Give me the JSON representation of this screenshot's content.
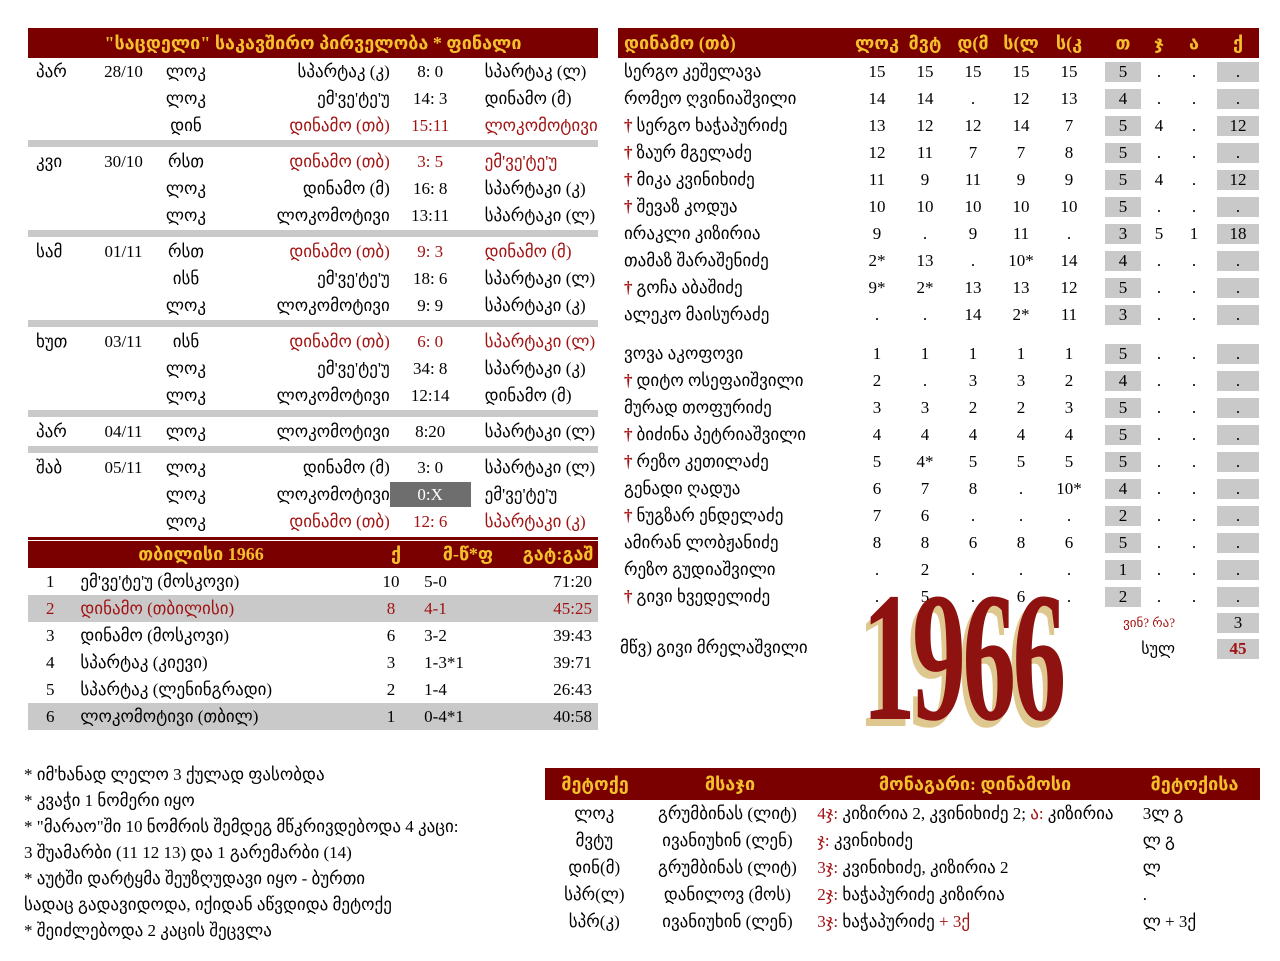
{
  "colors": {
    "maroon": "#7a0000",
    "gold": "#f3c02c",
    "red_text": "#a11212",
    "gray": "#c9c9c9",
    "box_gray": "#6e6e6e",
    "year_fill": "#8e1310",
    "year_shadow": "#dfc88f"
  },
  "fixtures": {
    "title": "\"საცდელი\" საკავშირო პირველობა * ფინალი",
    "groups": [
      {
        "day": "პარ",
        "date": "28/10",
        "rows": [
          {
            "venue": "ლოკ",
            "home": "სპარტაკ (კ)",
            "score": "8: 0",
            "away": "სპარტაკ (ლ)",
            "red": false,
            "box": false
          },
          {
            "venue": "ლოკ",
            "home": "ემ'ვე'ტე'უ",
            "score": "14: 3",
            "away": "დინამო (მ)",
            "red": false,
            "box": false
          },
          {
            "venue": "დინ",
            "home": "დინამო (თბ)",
            "score": "15:11",
            "away": "ლოკომოტივი",
            "red": true,
            "box": false
          }
        ]
      },
      {
        "day": "კვი",
        "date": "30/10",
        "rows": [
          {
            "venue": "რსთ",
            "home": "დინამო (თბ)",
            "score": "3: 5",
            "away": "ემ'ვე'ტე'უ",
            "red": true,
            "box": false
          },
          {
            "venue": "ლოკ",
            "home": "დინამო (მ)",
            "score": "16: 8",
            "away": "სპარტაკი (კ)",
            "red": false,
            "box": false
          },
          {
            "venue": "ლოკ",
            "home": "ლოკომოტივი",
            "score": "13:11",
            "away": "სპარტაკი (ლ)",
            "red": false,
            "box": false
          }
        ]
      },
      {
        "day": "სამ",
        "date": "01/11",
        "rows": [
          {
            "venue": "რსთ",
            "home": "დინამო (თბ)",
            "score": "9: 3",
            "away": "დინამო (მ)",
            "red": true,
            "box": false
          },
          {
            "venue": "ისნ",
            "home": "ემ'ვე'ტე'უ",
            "score": "18: 6",
            "away": "სპარტაკი (ლ)",
            "red": false,
            "box": false
          },
          {
            "venue": "ლოკ",
            "home": "ლოკომოტივი",
            "score": "9: 9",
            "away": "სპარტაკი (კ)",
            "red": false,
            "box": false
          }
        ]
      },
      {
        "day": "ხუთ",
        "date": "03/11",
        "rows": [
          {
            "venue": "ისნ",
            "home": "დინამო (თბ)",
            "score": "6: 0",
            "away": "სპარტაკი (ლ)",
            "red": true,
            "box": false
          },
          {
            "venue": "ლოკ",
            "home": "ემ'ვე'ტე'უ",
            "score": "34: 8",
            "away": "სპარტაკი (კ)",
            "red": false,
            "box": false
          },
          {
            "venue": "ლოკ",
            "home": "ლოკომოტივი",
            "score": "12:14",
            "away": "დინამო (მ)",
            "red": false,
            "box": false
          }
        ]
      },
      {
        "day": "პარ",
        "date": "04/11",
        "rows": [
          {
            "venue": "ლოკ",
            "home": "ლოკომოტივი",
            "score": "8:20",
            "away": "სპარტაკი (ლ)",
            "red": false,
            "box": false
          }
        ]
      },
      {
        "day": "შაბ",
        "date": "05/11",
        "rows": [
          {
            "venue": "ლოკ",
            "home": "დინამო (მ)",
            "score": "3: 0",
            "away": "სპარტაკი (ლ)",
            "red": false,
            "box": false
          },
          {
            "venue": "ლოკ",
            "home": "ლოკომოტივი",
            "score": "0:X",
            "away": "ემ'ვე'ტე'უ",
            "red": false,
            "box": true
          },
          {
            "venue": "ლოკ",
            "home": "დინამო (თბ)",
            "score": "12: 6",
            "away": "სპარტაკი (კ)",
            "red": true,
            "box": false
          }
        ]
      }
    ]
  },
  "standings": {
    "title": "თბილისი 1966",
    "col_q": "ქ",
    "col_record": "მ-წ*ფ",
    "col_score": "გატ:გაშ",
    "rows": [
      {
        "rank": "1",
        "team": "ემ'ვე'ტე'უ (მოსკოვი)",
        "q": "10",
        "record": "5-0",
        "score": "71:20",
        "style": ""
      },
      {
        "rank": "2",
        "team": "დინამო (თბილისი)",
        "q": "8",
        "record": "4-1",
        "score": "45:25",
        "style": "redgray"
      },
      {
        "rank": "3",
        "team": "დინამო (მოსკოვი)",
        "q": "6",
        "record": "3-2",
        "score": "39:43",
        "style": ""
      },
      {
        "rank": "4",
        "team": "სპარტაკ (კიევი)",
        "q": "3",
        "record": "1-3*1",
        "score": "39:71",
        "style": ""
      },
      {
        "rank": "5",
        "team": "სპარტაკ (ლენინგრადი)",
        "q": "2",
        "record": "1-4",
        "score": "26:43",
        "style": ""
      },
      {
        "rank": "6",
        "team": "ლოკომოტივი (თბილ)",
        "q": "1",
        "record": "0-4*1",
        "score": "40:58",
        "style": "gray"
      }
    ]
  },
  "footnotes": [
    "* იმ'ხანად ლელო 3 ქულად ფასობდა",
    "* კვაჭი 1 ნომერი იყო",
    "* \"მარაო\"ში 10 ნომრის შემდეგ მწკრივდებოდა 4 კაცი:",
    "3 შუამარბი (11 12 13) და 1 გარემარბი (14)",
    "* აუტში დარტყმა შეუზღუდავი იყო - ბურთი",
    "სადაც გადავიდოდა, იქიდან აწვდიდა მეტოქე",
    "* შეიძლებოდა 2 კაცის შეცვლა"
  ],
  "squad": {
    "title": "დინამო (თბ)",
    "match_cols": [
      "ლოკ",
      "მვტ",
      "დ(მ",
      "ს(ლ",
      "ს(კ"
    ],
    "stat_cols": [
      "თ",
      "ჯ",
      "ა",
      "ქ"
    ],
    "players": [
      {
        "cross": false,
        "name": "სერგო კეშელავა",
        "m": [
          "15",
          "15",
          "15",
          "15",
          "15"
        ],
        "t": "5",
        "j": ".",
        "a": ".",
        "q": ".",
        "gap_after": false
      },
      {
        "cross": false,
        "name": "რომეო ღვინიაშვილი",
        "m": [
          "14",
          "14",
          ".",
          "12",
          "13"
        ],
        "t": "4",
        "j": ".",
        "a": ".",
        "q": ".",
        "gap_after": false
      },
      {
        "cross": true,
        "name": "სერგო ხაჭაპურიძე",
        "m": [
          "13",
          "12",
          "12",
          "14",
          "7"
        ],
        "t": "5",
        "j": "4",
        "a": ".",
        "q": "12",
        "gap_after": false
      },
      {
        "cross": true,
        "name": "ზაურ მგელაძე",
        "m": [
          "12",
          "11",
          "7",
          "7",
          "8"
        ],
        "t": "5",
        "j": ".",
        "a": ".",
        "q": ".",
        "gap_after": false
      },
      {
        "cross": true,
        "name": "მიკა კვინიხიძე",
        "m": [
          "11",
          "9",
          "11",
          "9",
          "9"
        ],
        "t": "5",
        "j": "4",
        "a": ".",
        "q": "12",
        "gap_after": false
      },
      {
        "cross": true,
        "name": "შევაზ კოდუა",
        "m": [
          "10",
          "10",
          "10",
          "10",
          "10"
        ],
        "t": "5",
        "j": ".",
        "a": ".",
        "q": ".",
        "gap_after": false
      },
      {
        "cross": false,
        "name": "ირაკლი კიზირია",
        "m": [
          "9",
          ".",
          "9",
          "11",
          "."
        ],
        "t": "3",
        "j": "5",
        "a": "1",
        "q": "18",
        "gap_after": false
      },
      {
        "cross": false,
        "name": "თამაზ შარაშენიძე",
        "m": [
          "2*",
          "13",
          ".",
          "10*",
          "14"
        ],
        "t": "4",
        "j": ".",
        "a": ".",
        "q": ".",
        "gap_after": false
      },
      {
        "cross": true,
        "name": "გოჩა აბაშიძე",
        "m": [
          "9*",
          "2*",
          "13",
          "13",
          "12"
        ],
        "t": "5",
        "j": ".",
        "a": ".",
        "q": ".",
        "gap_after": false
      },
      {
        "cross": false,
        "name": "ალეკო მაისურაძე",
        "m": [
          ".",
          ".",
          "14",
          "2*",
          "11"
        ],
        "t": "3",
        "j": ".",
        "a": ".",
        "q": ".",
        "gap_after": true
      },
      {
        "cross": false,
        "name": "ვოვა აკოფოვი",
        "m": [
          "1",
          "1",
          "1",
          "1",
          "1"
        ],
        "t": "5",
        "j": ".",
        "a": ".",
        "q": ".",
        "gap_after": false
      },
      {
        "cross": true,
        "name": "დიტო ოსეფაიშვილი",
        "m": [
          "2",
          ".",
          "3",
          "3",
          "2"
        ],
        "t": "4",
        "j": ".",
        "a": ".",
        "q": ".",
        "gap_after": false
      },
      {
        "cross": false,
        "name": "მურად თოფურიძე",
        "m": [
          "3",
          "3",
          "2",
          "2",
          "3"
        ],
        "t": "5",
        "j": ".",
        "a": ".",
        "q": ".",
        "gap_after": false
      },
      {
        "cross": true,
        "name": "ბიძინა პეტრიაშვილი",
        "m": [
          "4",
          "4",
          "4",
          "4",
          "4"
        ],
        "t": "5",
        "j": ".",
        "a": ".",
        "q": ".",
        "gap_after": false
      },
      {
        "cross": true,
        "name": "რეზო კეთილაძე",
        "m": [
          "5",
          "4*",
          "5",
          "5",
          "5"
        ],
        "t": "5",
        "j": ".",
        "a": ".",
        "q": ".",
        "gap_after": false
      },
      {
        "cross": false,
        "name": "გენადი ღადუა",
        "m": [
          "6",
          "7",
          "8",
          ".",
          "10*"
        ],
        "t": "4",
        "j": ".",
        "a": ".",
        "q": ".",
        "gap_after": false
      },
      {
        "cross": true,
        "name": "ნუგზარ ენდელაძე",
        "m": [
          "7",
          "6",
          ".",
          ".",
          "."
        ],
        "t": "2",
        "j": ".",
        "a": ".",
        "q": ".",
        "gap_after": false
      },
      {
        "cross": false,
        "name": "ამირან ლობჟანიძე",
        "m": [
          "8",
          "8",
          "6",
          "8",
          "6"
        ],
        "t": "5",
        "j": ".",
        "a": ".",
        "q": ".",
        "gap_after": false
      },
      {
        "cross": false,
        "name": "რეზო გუდიაშვილი",
        "m": [
          ".",
          "2",
          ".",
          ".",
          "."
        ],
        "t": "1",
        "j": ".",
        "a": ".",
        "q": ".",
        "gap_after": false
      },
      {
        "cross": true,
        "name": "გივი ხვედელიძე",
        "m": [
          ".",
          "5",
          ".",
          "6",
          "."
        ],
        "t": "2",
        "j": ".",
        "a": ".",
        "q": ".",
        "gap_after": false
      }
    ],
    "who_what_label": "ვინ? რა?",
    "who_what_value": "3",
    "total_label": "სულ",
    "total_value": "45",
    "coach": "მწვ) გივი მრელაშვილი"
  },
  "year": "1966",
  "legend": {
    "headers": [
      "მეტოქე",
      "მსაჯი",
      "მონაგარი: დინამოსი",
      "მეტოქისა"
    ],
    "rows": [
      {
        "opp": "ლოკ",
        "ref": "გრუმბინას (ლიტ)",
        "segs": [
          {
            "t": "4ჯ:",
            "red": true
          },
          {
            "t": " კიზირია 2, კვინიხიძე 2; ",
            "red": false
          },
          {
            "t": "ა:",
            "red": true
          },
          {
            "t": " კიზირია",
            "red": false
          }
        ],
        "opp_score": "3ლ გ"
      },
      {
        "opp": "მვტუ",
        "ref": "ივანიუხინ (ლენ)",
        "segs": [
          {
            "t": "ჯ:",
            "red": true
          },
          {
            "t": " კვინიხიძე",
            "red": false
          }
        ],
        "opp_score": "ლ გ"
      },
      {
        "opp": "დინ(მ)",
        "ref": "გრუმბინას (ლიტ)",
        "segs": [
          {
            "t": "3ჯ:",
            "red": true
          },
          {
            "t": " კვინიხიძე, კიზირია 2",
            "red": false
          }
        ],
        "opp_score": "ლ"
      },
      {
        "opp": "სპრ(ლ)",
        "ref": "დანილოვ (მოს)",
        "segs": [
          {
            "t": "2ჯ:",
            "red": true
          },
          {
            "t": " ხაჭაპურიძე კიზირია",
            "red": false
          }
        ],
        "opp_score": "."
      },
      {
        "opp": "სპრ(კ)",
        "ref": "ივანიუხინ (ლენ)",
        "segs": [
          {
            "t": "3ჯ:",
            "red": true
          },
          {
            "t": " ხაჭაპურიძე ",
            "red": false
          },
          {
            "t": "+ 3ქ",
            "red": true
          }
        ],
        "opp_score": "ლ + 3ქ"
      }
    ]
  }
}
